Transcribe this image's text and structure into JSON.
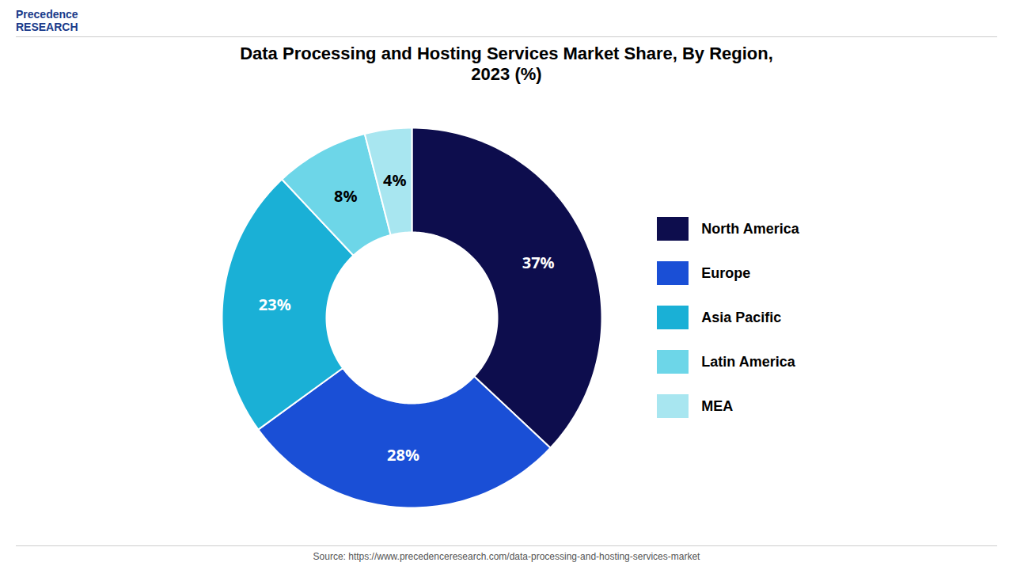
{
  "chart_data": {
    "type": "pie",
    "title": "Data Processing and Hosting Services Market Share, By Region,\n2023 (%)",
    "categories": [
      "North America",
      "Europe",
      "Asia Pacific",
      "Latin America",
      "MEA"
    ],
    "values": [
      37,
      28,
      23,
      8,
      4
    ],
    "value_labels": [
      "37%",
      "28%",
      "23%",
      "8%",
      "4%"
    ],
    "colors": [
      "#0d0d4d",
      "#1a4fd6",
      "#1ab0d6",
      "#6dd6e8",
      "#a8e6f0"
    ],
    "label_colors": [
      "white",
      "white",
      "white",
      "black",
      "black"
    ],
    "data_labels": true,
    "legend": "right",
    "annotations": [
      "Precedence\nRESEARCH",
      "Source: https://www.precedenceresearch.com/data-processing-and-hosting-services-market"
    ]
  }
}
